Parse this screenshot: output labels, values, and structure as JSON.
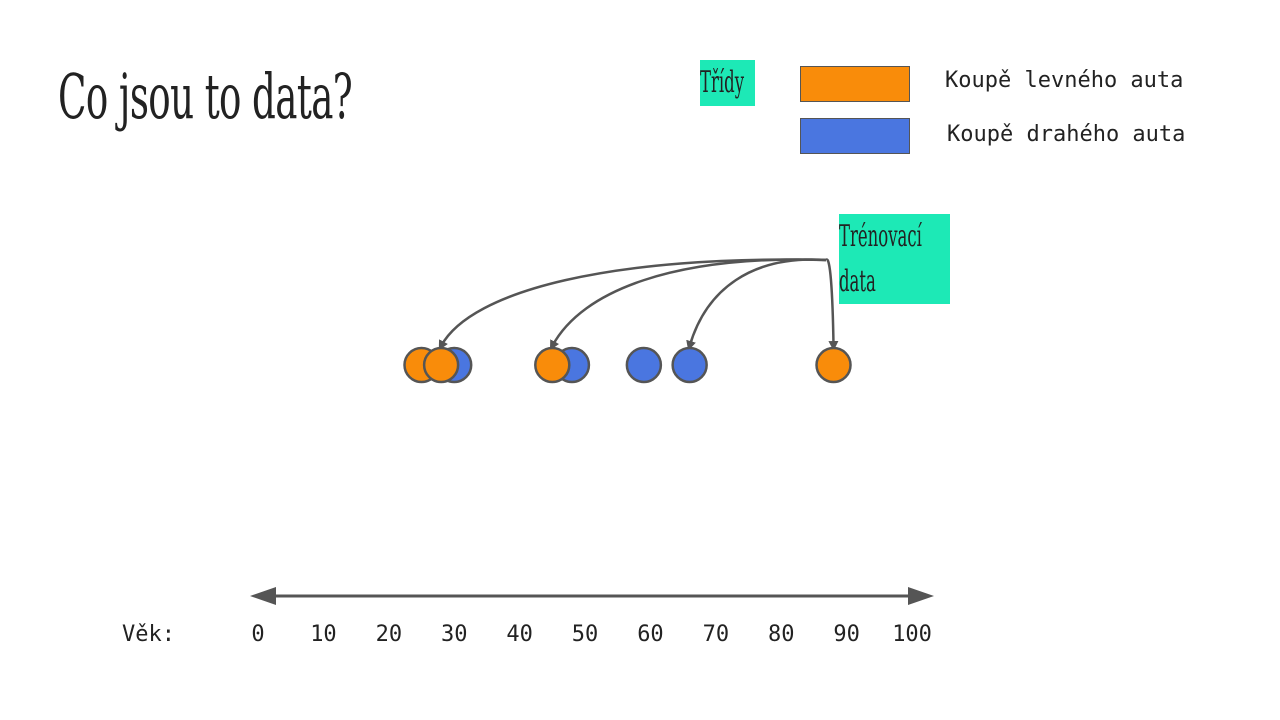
{
  "slide": {
    "title": "Co jsou to data?",
    "classes_label": "Třídy",
    "training_label_line1": "Trénovací",
    "training_label_line2": "data"
  },
  "legend": [
    {
      "label": "Koupě levného auta",
      "color": "#f98c0a"
    },
    {
      "label": "Koupě drahého auta",
      "color": "#4a76e0"
    }
  ],
  "colors": {
    "highlight": "#1de9b6",
    "axis": "#555555",
    "orange": "#f98c0a",
    "blue": "#4a76e0"
  },
  "chart_data": {
    "type": "scatter",
    "xlabel": "Věk:",
    "xlim": [
      0,
      100
    ],
    "ticks": [
      0,
      10,
      20,
      30,
      40,
      50,
      60,
      70,
      80,
      90,
      100
    ],
    "points": [
      {
        "age": 25,
        "class": "cheap",
        "training": false
      },
      {
        "age": 30,
        "class": "expensive",
        "training": false
      },
      {
        "age": 28,
        "class": "cheap",
        "training": true
      },
      {
        "age": 48,
        "class": "expensive",
        "training": false
      },
      {
        "age": 45,
        "class": "cheap",
        "training": true
      },
      {
        "age": 59,
        "class": "expensive",
        "training": false
      },
      {
        "age": 66,
        "class": "expensive",
        "training": true
      },
      {
        "age": 88,
        "class": "cheap",
        "training": true
      }
    ]
  }
}
